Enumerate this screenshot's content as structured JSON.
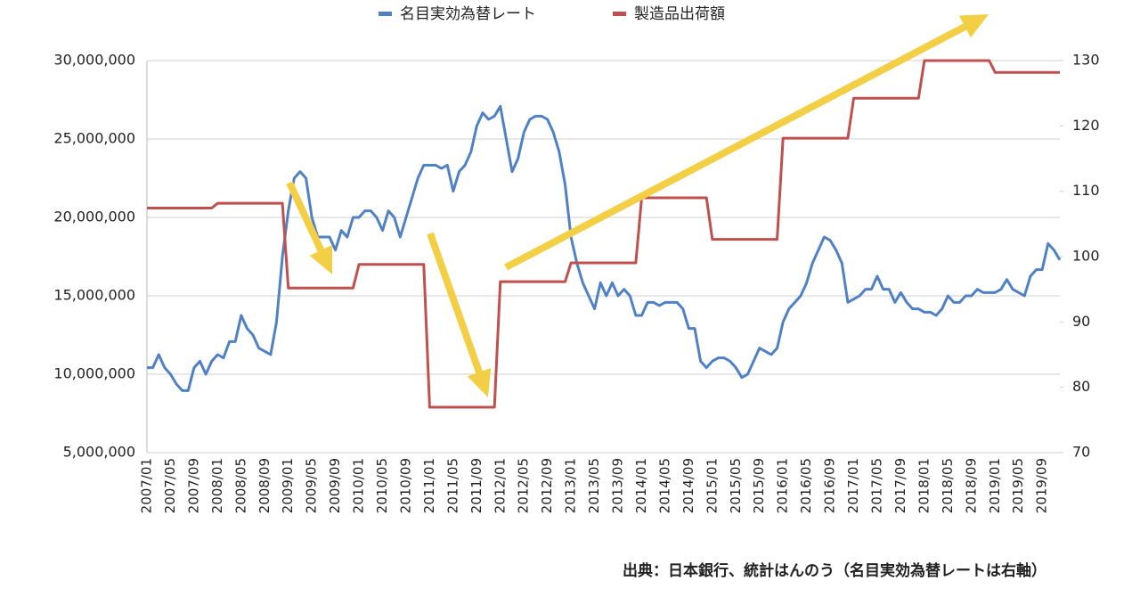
{
  "chart_data": {
    "type": "line",
    "source": "出典：日本銀行、統計はんのう（名目実効為替レートは右軸）",
    "categories": [
      "2007/01",
      null,
      null,
      null,
      "2007/05",
      null,
      null,
      null,
      "2007/09",
      null,
      null,
      null,
      "2008/01",
      null,
      null,
      null,
      "2008/05",
      null,
      null,
      null,
      "2008/09",
      null,
      null,
      null,
      "2009/01",
      null,
      null,
      null,
      "2009/05",
      null,
      null,
      null,
      "2009/09",
      null,
      null,
      null,
      "2010/01",
      null,
      null,
      null,
      "2010/05",
      null,
      null,
      null,
      "2010/09",
      null,
      null,
      null,
      "2011/01",
      null,
      null,
      null,
      "2011/05",
      null,
      null,
      null,
      "2011/09",
      null,
      null,
      null,
      "2012/01",
      null,
      null,
      null,
      "2012/05",
      null,
      null,
      null,
      "2012/09",
      null,
      null,
      null,
      "2013/01",
      null,
      null,
      null,
      "2013/05",
      null,
      null,
      null,
      "2013/09",
      null,
      null,
      null,
      "2014/01",
      null,
      null,
      null,
      "2014/05",
      null,
      null,
      null,
      "2014/09",
      null,
      null,
      null,
      "2015/01",
      null,
      null,
      null,
      "2015/05",
      null,
      null,
      null,
      "2015/09",
      null,
      null,
      null,
      "2016/01",
      null,
      null,
      null,
      "2016/05",
      null,
      null,
      null,
      "2016/09",
      null,
      null,
      null,
      "2017/01",
      null,
      null,
      null,
      "2017/05",
      null,
      null,
      null,
      "2017/09",
      null,
      null,
      null,
      "2018/01",
      null,
      null,
      null,
      "2018/05",
      null,
      null,
      null,
      "2018/09",
      null,
      null,
      null,
      "2019/01",
      null,
      null,
      null,
      "2019/05",
      null,
      null,
      null,
      "2019/09",
      null,
      null,
      null
    ],
    "series": [
      {
        "name": "名目実効為替レート",
        "color": "#4f81c4",
        "axis": "y2",
        "values": [
          83,
          83,
          85,
          83,
          82,
          80.5,
          79.5,
          79.5,
          83,
          84,
          82,
          84,
          85,
          84.5,
          87,
          87,
          91,
          89,
          88,
          86,
          85.5,
          85,
          90,
          100,
          107,
          112,
          113,
          112,
          106,
          103,
          103,
          103,
          101,
          104,
          103,
          106,
          106,
          107,
          107,
          106,
          104,
          107,
          106,
          103,
          106,
          109,
          112,
          114,
          114,
          114,
          113.5,
          114,
          110,
          113,
          114,
          116,
          120,
          122,
          121,
          121.5,
          123,
          118,
          113,
          115,
          119,
          121,
          121.5,
          121.5,
          121,
          119,
          116,
          111,
          103,
          99,
          96,
          94,
          92,
          96,
          94,
          96,
          94,
          95,
          94,
          91,
          91,
          93,
          93,
          92.5,
          93,
          93,
          93,
          92,
          89,
          89,
          84,
          83,
          84,
          84.5,
          84.5,
          84,
          83,
          81.5,
          82,
          84,
          86,
          85.5,
          85,
          86,
          90,
          92,
          93,
          94,
          96,
          99,
          101,
          103,
          102.5,
          101,
          99,
          93,
          93.5,
          94,
          95,
          95,
          97,
          95,
          95,
          93,
          94.5,
          93,
          92,
          92,
          91.5,
          91.5,
          91,
          92,
          94,
          93,
          93,
          94,
          94,
          95,
          94.5,
          94.5,
          94.5,
          95,
          96.5,
          95,
          94.5,
          94,
          97,
          98,
          98,
          102,
          101,
          99.5
        ]
      },
      {
        "name": "製造品出荷額",
        "color": "#c0504d",
        "values": [
          20600000,
          20600000,
          20600000,
          20600000,
          20600000,
          20600000,
          20600000,
          20600000,
          20600000,
          20600000,
          20600000,
          20600000,
          20900000,
          20900000,
          20900000,
          20900000,
          20900000,
          20900000,
          20900000,
          20900000,
          20900000,
          20900000,
          20900000,
          20900000,
          15500000,
          15500000,
          15500000,
          15500000,
          15500000,
          15500000,
          15500000,
          15500000,
          15500000,
          15500000,
          15500000,
          15500000,
          17000000,
          17000000,
          17000000,
          17000000,
          17000000,
          17000000,
          17000000,
          17000000,
          17000000,
          17000000,
          17000000,
          17000000,
          7900000,
          7900000,
          7900000,
          7900000,
          7900000,
          7900000,
          7900000,
          7900000,
          7900000,
          7900000,
          7900000,
          7900000,
          15900000,
          15900000,
          15900000,
          15900000,
          15900000,
          15900000,
          15900000,
          15900000,
          15900000,
          15900000,
          15900000,
          15900000,
          17100000,
          17100000,
          17100000,
          17100000,
          17100000,
          17100000,
          17100000,
          17100000,
          17100000,
          17100000,
          17100000,
          17100000,
          21250000,
          21250000,
          21250000,
          21250000,
          21250000,
          21250000,
          21250000,
          21250000,
          21250000,
          21250000,
          21250000,
          21250000,
          18600000,
          18600000,
          18600000,
          18600000,
          18600000,
          18600000,
          18600000,
          18600000,
          18600000,
          18600000,
          18600000,
          18600000,
          25050000,
          25050000,
          25050000,
          25050000,
          25050000,
          25050000,
          25050000,
          25050000,
          25050000,
          25050000,
          25050000,
          25050000,
          27600000,
          27600000,
          27600000,
          27600000,
          27600000,
          27600000,
          27600000,
          27600000,
          27600000,
          27600000,
          27600000,
          27600000,
          30000000,
          30000000,
          30000000,
          30000000,
          30000000,
          30000000,
          30000000,
          30000000,
          30000000,
          30000000,
          30000000,
          30000000,
          29250000,
          29250000,
          29250000,
          29250000,
          29250000,
          29250000,
          29250000,
          29250000,
          29250000,
          29250000,
          29250000,
          29250000
        ]
      }
    ],
    "ylim": [
      5000000,
      30000000
    ],
    "yticks": [
      {
        "value": 5000000,
        "label": "5,000,000"
      },
      {
        "value": 10000000,
        "label": "10,000,000"
      },
      {
        "value": 15000000,
        "label": "15,000,000"
      },
      {
        "value": 20000000,
        "label": "20,000,000"
      },
      {
        "value": 25000000,
        "label": "25,000,000"
      },
      {
        "value": 30000000,
        "label": "30,000,000"
      }
    ],
    "y2lim": [
      70,
      130
    ],
    "y2ticks": [
      70,
      80,
      90,
      100,
      110,
      120,
      130
    ],
    "grid": true
  }
}
